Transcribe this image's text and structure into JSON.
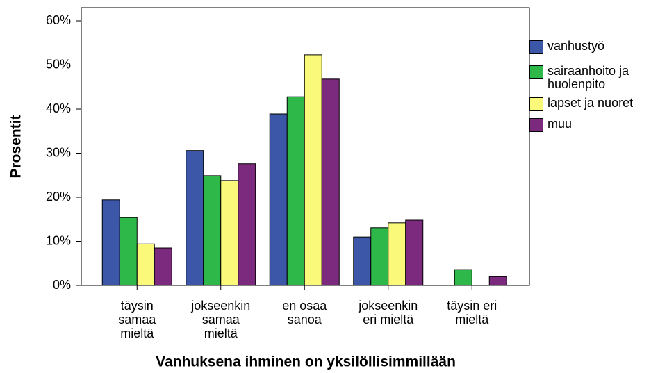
{
  "chart_data": {
    "type": "bar",
    "xlabel": "Vanhuksena ihminen on yksilöllisimmillään",
    "ylabel": "Prosentit",
    "categories": [
      "täysin samaa mieltä",
      "jokseenkin samaa mieltä",
      "en osaa sanoa",
      "jokseenkin eri mieltä",
      "täysin eri mieltä"
    ],
    "series": [
      {
        "name": "vanhustyö",
        "color": "#3c56a8",
        "values": [
          19.4,
          30.6,
          38.9,
          11.0,
          0
        ]
      },
      {
        "name": "sairaanhoito ja huolenpito",
        "color": "#2fb84a",
        "values": [
          15.4,
          24.9,
          42.8,
          13.1,
          3.6
        ]
      },
      {
        "name": "lapset ja nuoret",
        "color": "#fbf97a",
        "values": [
          9.4,
          23.8,
          52.3,
          14.2,
          0
        ]
      },
      {
        "name": "muu",
        "color": "#7c2a7e",
        "values": [
          8.5,
          27.6,
          46.8,
          14.8,
          2.0
        ]
      }
    ],
    "ylim": [
      0,
      60
    ],
    "yticks": [
      {
        "value": 0,
        "label": "0%"
      },
      {
        "value": 10,
        "label": "10%"
      },
      {
        "value": 20,
        "label": "20%"
      },
      {
        "value": 30,
        "label": "30%"
      },
      {
        "value": 40,
        "label": "40%"
      },
      {
        "value": 50,
        "label": "50%"
      },
      {
        "value": 60,
        "label": "60%"
      }
    ],
    "legend": "right"
  }
}
